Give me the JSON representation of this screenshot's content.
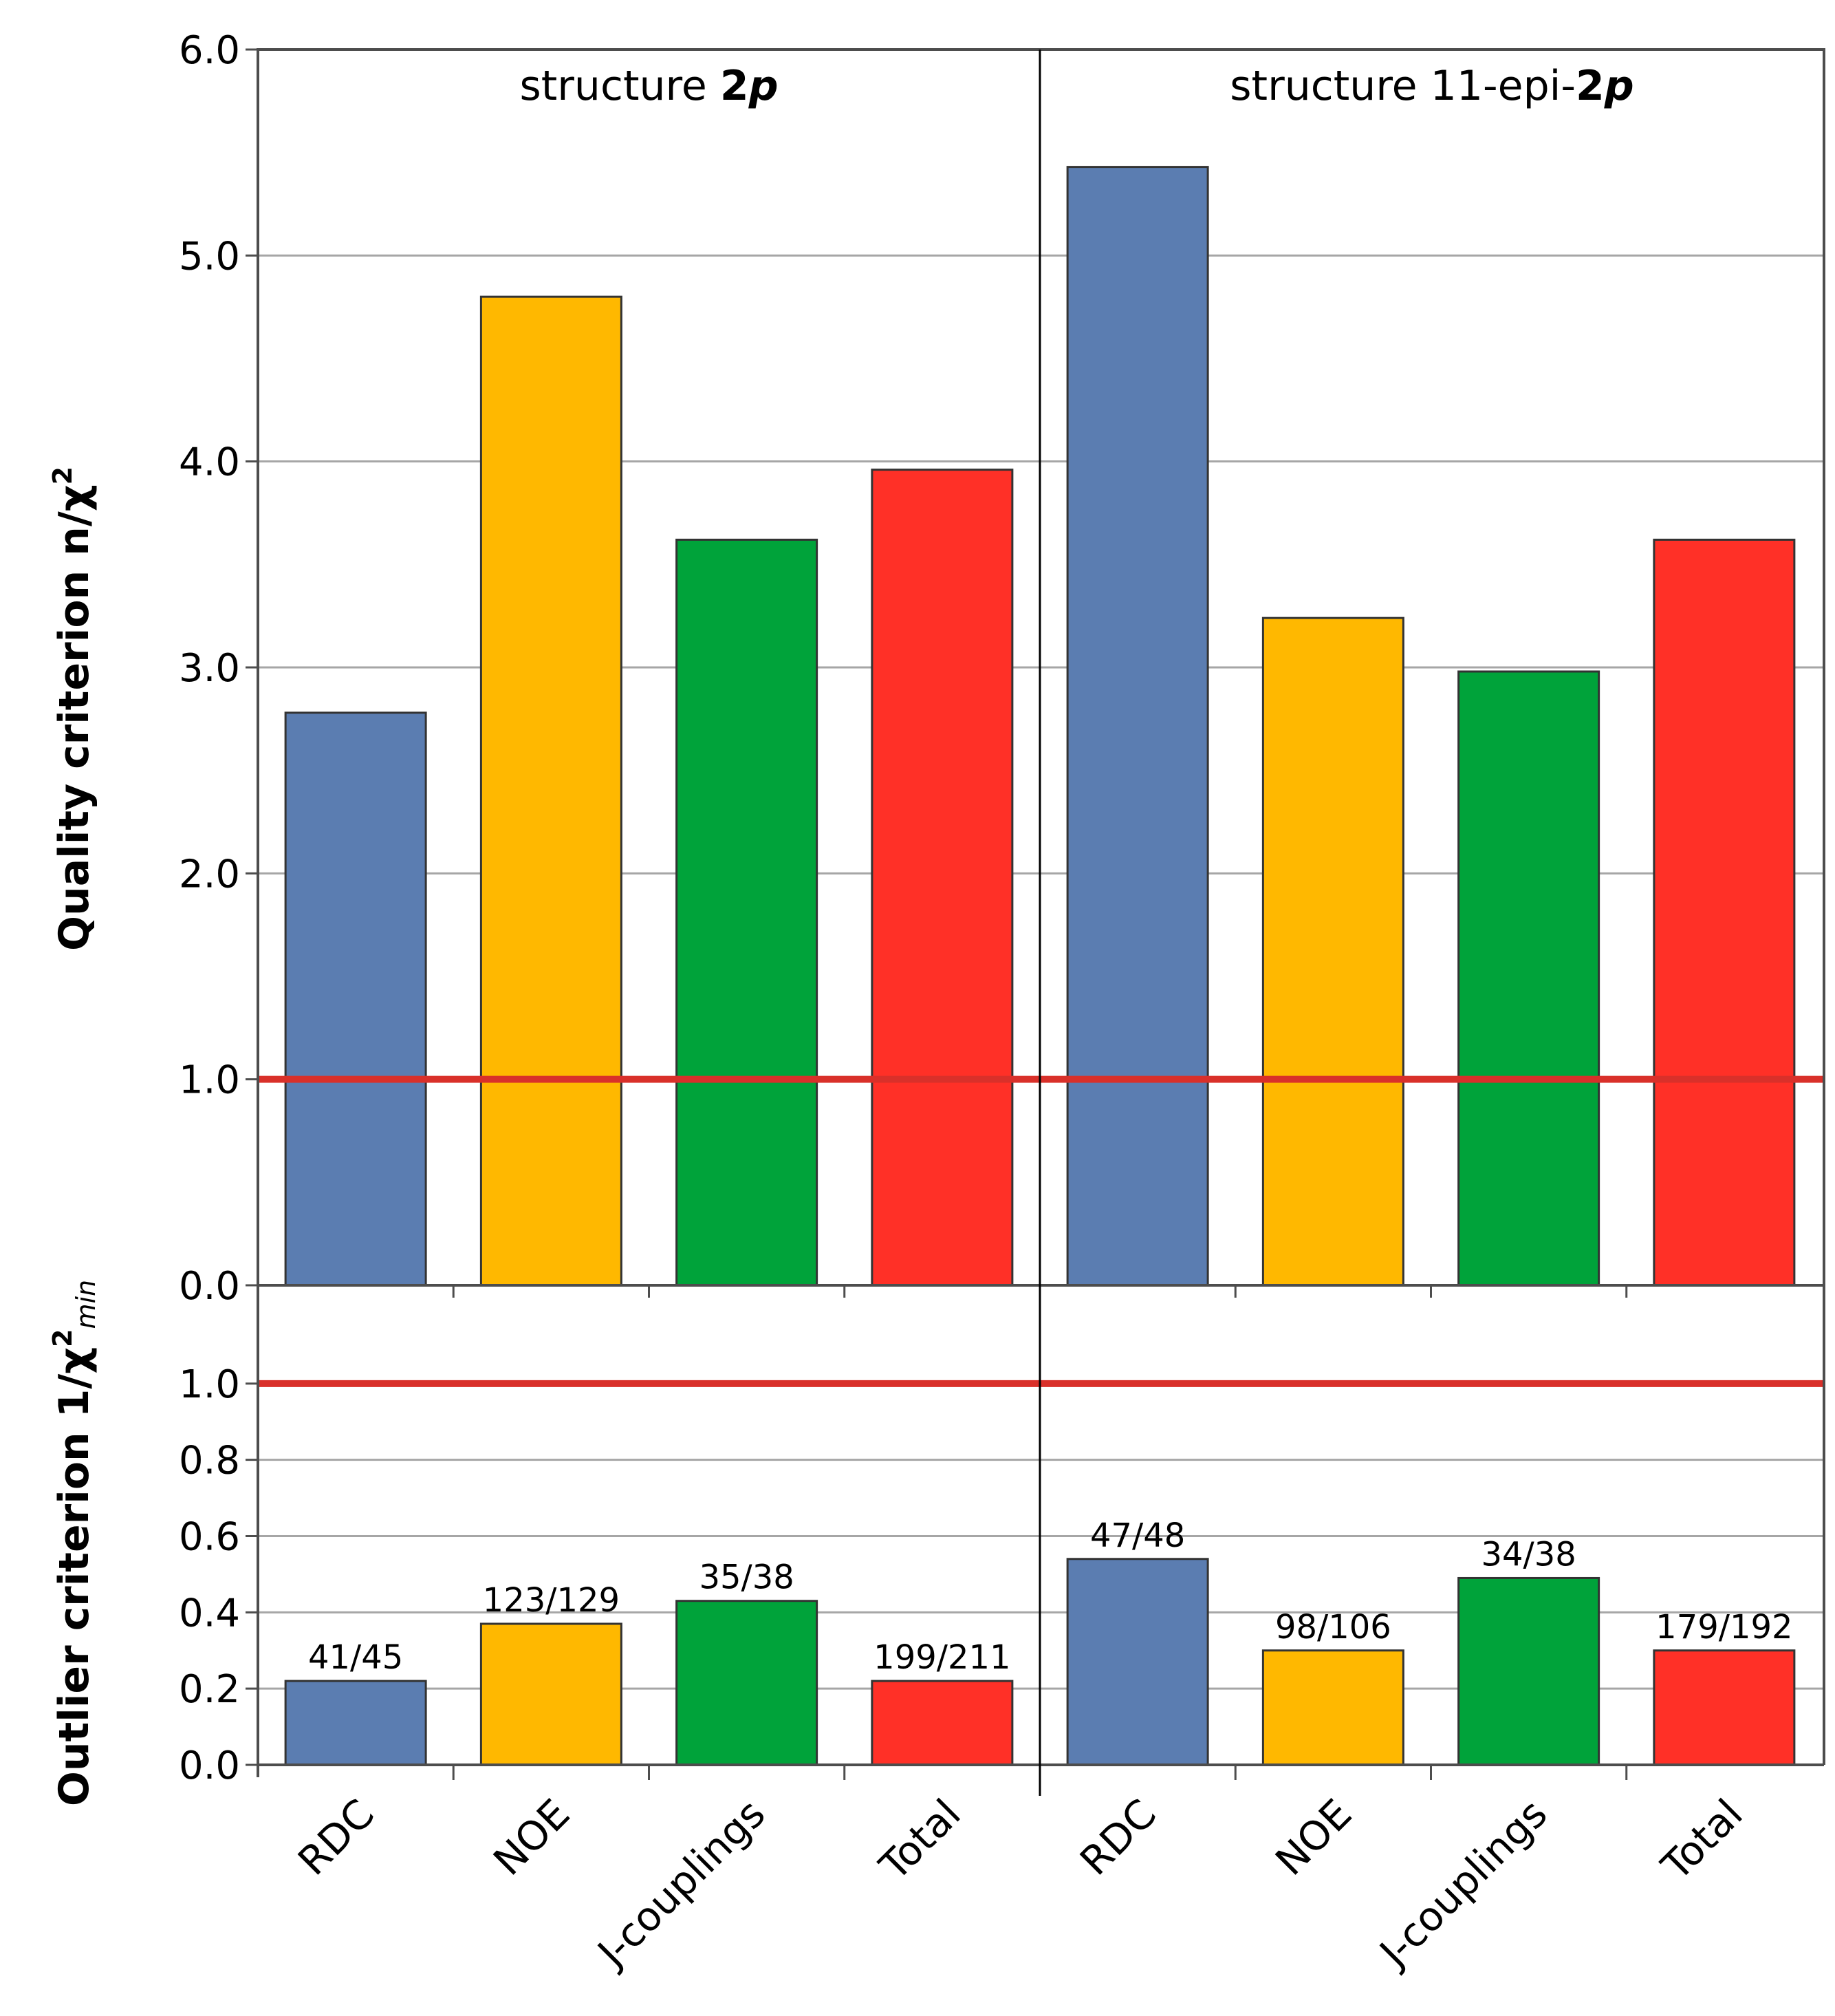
{
  "chart_data": {
    "type": "bar",
    "groups": [
      {
        "label_prefix": "structure ",
        "label_bold": "2",
        "label_bold_italic": "p"
      },
      {
        "label_prefix": "structure 11-epi-",
        "label_bold": "2",
        "label_bold_italic": "p"
      }
    ],
    "categories": [
      "RDC",
      "NOE",
      "J-couplings",
      "Total"
    ],
    "colors": [
      "#5b7db1",
      "#ffb800",
      "#00a33a",
      "#ff3027"
    ],
    "reference_line_color": "#d9302a",
    "top_panel": {
      "ylabel": "Quality criterion n/χ",
      "ylabel_sup": "2",
      "ylim": [
        0,
        6
      ],
      "yticks": [
        "0.0",
        "1.0",
        "2.0",
        "3.0",
        "4.0",
        "5.0",
        "6.0"
      ],
      "reference_line": 1.0,
      "values": [
        [
          2.78,
          4.8,
          3.62,
          3.96
        ],
        [
          5.43,
          3.24,
          2.98,
          3.62
        ]
      ]
    },
    "bottom_panel": {
      "ylabel": "Outlier criterion  1/χ",
      "ylabel_sup": "2",
      "ylabel_sub": "min",
      "ylim": [
        0,
        1.2
      ],
      "yticks": [
        "0.0",
        "0.2",
        "0.4",
        "0.6",
        "0.8",
        "1.0"
      ],
      "reference_line": 1.0,
      "values": [
        [
          0.22,
          0.37,
          0.43,
          0.22
        ],
        [
          0.54,
          0.3,
          0.49,
          0.3
        ]
      ],
      "data_labels": [
        [
          "41/45",
          "123/129",
          "35/38",
          "199/211"
        ],
        [
          "47/48",
          "98/106",
          "34/38",
          "179/192"
        ]
      ]
    }
  }
}
